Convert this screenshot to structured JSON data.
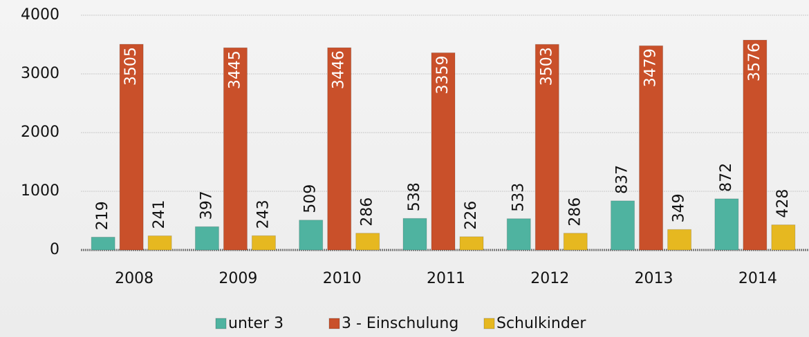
{
  "chart_data": {
    "type": "bar",
    "categories": [
      "2008",
      "2009",
      "2010",
      "2011",
      "2012",
      "2013",
      "2014"
    ],
    "series": [
      {
        "name": "unter 3",
        "color": "#4fb3a0",
        "values": [
          219,
          397,
          509,
          538,
          533,
          837,
          872
        ]
      },
      {
        "name": "3 - Einschulung",
        "color": "#c9502a",
        "values": [
          3505,
          3445,
          3446,
          3359,
          3503,
          3479,
          3576
        ]
      },
      {
        "name": "Schulkinder",
        "color": "#e6b820",
        "values": [
          241,
          243,
          286,
          226,
          286,
          349,
          428
        ]
      }
    ],
    "ylim": [
      0,
      4000
    ],
    "yticks": [
      0,
      1000,
      2000,
      3000,
      4000
    ],
    "grid": true,
    "legend": "bottom"
  }
}
